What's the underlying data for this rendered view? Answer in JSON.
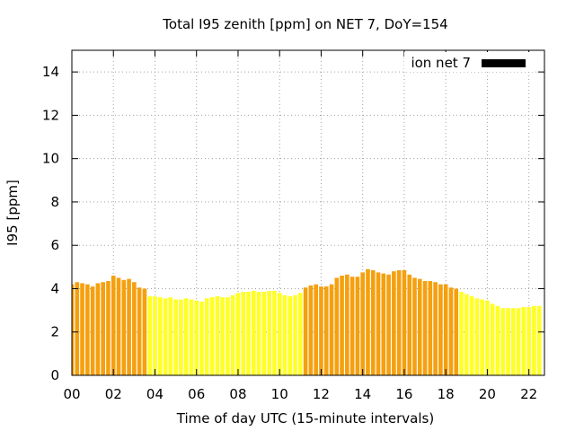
{
  "chart_data": {
    "type": "bar",
    "title": "Total I95 zenith [ppm] on NET 7, DoY=154",
    "xlabel": "Time of day UTC (15-minute intervals)",
    "ylabel": "I95 [ppm]",
    "xlim": [
      0,
      22.75
    ],
    "ylim": [
      0,
      15
    ],
    "x_ticks": [
      0,
      2,
      4,
      6,
      8,
      10,
      12,
      14,
      16,
      18,
      20,
      22
    ],
    "x_tick_labels": [
      "00",
      "02",
      "04",
      "06",
      "08",
      "10",
      "12",
      "14",
      "16",
      "18",
      "20",
      "22"
    ],
    "y_ticks": [
      0,
      2,
      4,
      6,
      8,
      10,
      12,
      14
    ],
    "y_tick_labels": [
      "0",
      "2",
      "4",
      "6",
      "8",
      "10",
      "12",
      "14"
    ],
    "grid": true,
    "legend": {
      "label": "ion net 7",
      "color": "#000000",
      "position": "top-right"
    },
    "colors": {
      "orange": "#f5a00f",
      "yellow": "#ffff26"
    },
    "bar_width_hours": 0.2,
    "series": [
      {
        "interval_hours": 0.25,
        "values": [
          4.2,
          4.3,
          4.25,
          4.2,
          4.1,
          4.25,
          4.3,
          4.35,
          4.6,
          4.5,
          4.4,
          4.45,
          4.3,
          4.05,
          4.0,
          3.65,
          3.65,
          3.6,
          3.55,
          3.6,
          3.5,
          3.5,
          3.55,
          3.5,
          3.45,
          3.4,
          3.55,
          3.6,
          3.65,
          3.6,
          3.6,
          3.7,
          3.8,
          3.85,
          3.85,
          3.9,
          3.85,
          3.85,
          3.9,
          3.9,
          3.8,
          3.7,
          3.65,
          3.7,
          3.8,
          4.05,
          4.15,
          4.2,
          4.1,
          4.1,
          4.2,
          4.5,
          4.6,
          4.65,
          4.55,
          4.55,
          4.75,
          4.9,
          4.85,
          4.75,
          4.7,
          4.65,
          4.8,
          4.85,
          4.85,
          4.65,
          4.5,
          4.45,
          4.35,
          4.35,
          4.3,
          4.2,
          4.2,
          4.05,
          4.0,
          3.85,
          3.75,
          3.65,
          3.55,
          3.5,
          3.45,
          3.3,
          3.2,
          3.1,
          3.1,
          3.1,
          3.1,
          3.15,
          3.15,
          3.2,
          3.2
        ],
        "colors": [
          "orange",
          "orange",
          "orange",
          "orange",
          "orange",
          "orange",
          "orange",
          "orange",
          "orange",
          "orange",
          "orange",
          "orange",
          "orange",
          "orange",
          "orange",
          "yellow",
          "yellow",
          "yellow",
          "yellow",
          "yellow",
          "yellow",
          "yellow",
          "yellow",
          "yellow",
          "yellow",
          "yellow",
          "yellow",
          "yellow",
          "yellow",
          "yellow",
          "yellow",
          "yellow",
          "yellow",
          "yellow",
          "yellow",
          "yellow",
          "yellow",
          "yellow",
          "yellow",
          "yellow",
          "yellow",
          "yellow",
          "yellow",
          "yellow",
          "yellow",
          "orange",
          "orange",
          "orange",
          "orange",
          "orange",
          "orange",
          "orange",
          "orange",
          "orange",
          "orange",
          "orange",
          "orange",
          "orange",
          "orange",
          "orange",
          "orange",
          "orange",
          "orange",
          "orange",
          "orange",
          "orange",
          "orange",
          "orange",
          "orange",
          "orange",
          "orange",
          "orange",
          "orange",
          "orange",
          "orange",
          "yellow",
          "yellow",
          "yellow",
          "yellow",
          "yellow",
          "yellow",
          "yellow",
          "yellow",
          "yellow",
          "yellow",
          "yellow",
          "yellow",
          "yellow",
          "yellow",
          "yellow",
          "yellow"
        ]
      }
    ]
  }
}
